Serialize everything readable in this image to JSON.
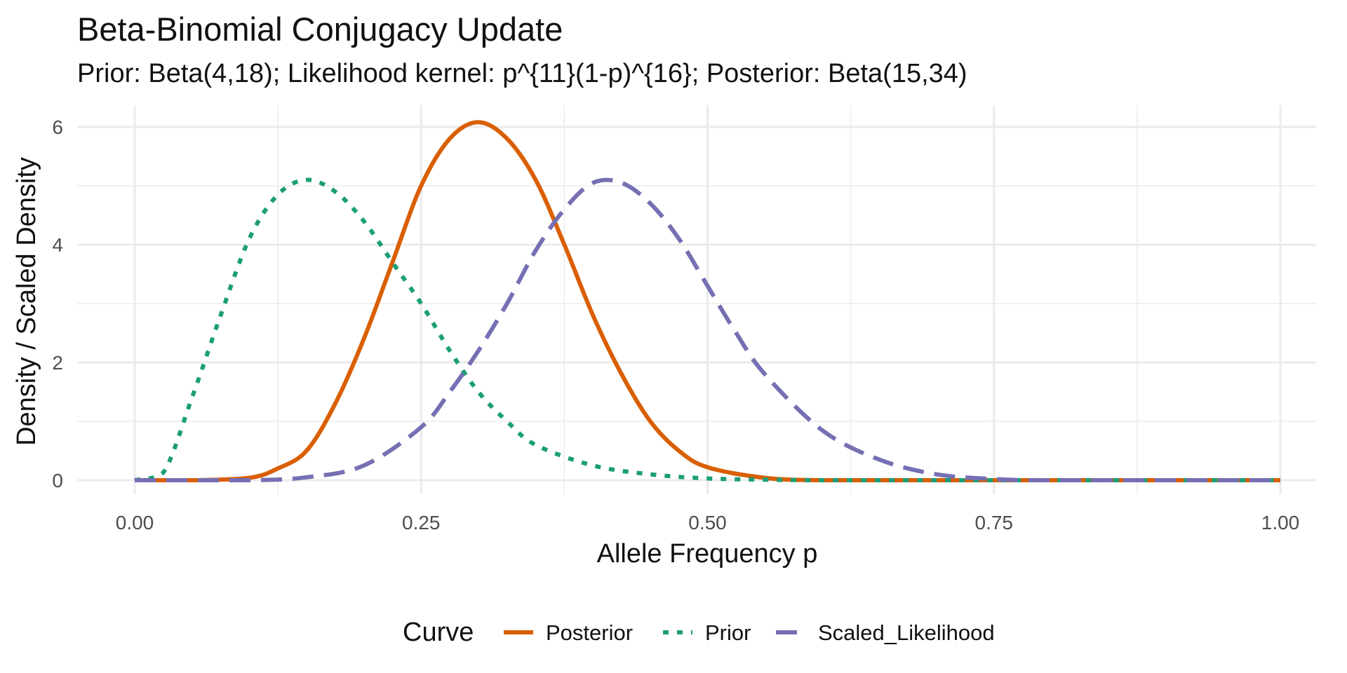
{
  "chart_data": {
    "type": "line",
    "title": "Beta-Binomial Conjugacy Update",
    "subtitle": "Prior: Beta(4,18); Likelihood kernel: p^{11}(1-p)^{16}; Posterior: Beta(15,34)",
    "xlabel": "Allele Frequency p",
    "ylabel": "Density / Scaled Density",
    "xlim": [
      0,
      1
    ],
    "ylim": [
      0,
      6.2
    ],
    "x_ticks": [
      "0.00",
      "0.25",
      "0.50",
      "0.75",
      "1.00"
    ],
    "y_ticks": [
      "0",
      "2",
      "4",
      "6"
    ],
    "grid": true,
    "legend": {
      "title": "Curve",
      "position": "bottom"
    },
    "series": [
      {
        "name": "Posterior",
        "color": "#D95F02",
        "dash": "solid",
        "x": [
          0,
          0.05,
          0.1,
          0.125,
          0.15,
          0.175,
          0.2,
          0.225,
          0.25,
          0.275,
          0.3,
          0.325,
          0.35,
          0.375,
          0.4,
          0.425,
          0.45,
          0.475,
          0.5,
          0.55,
          0.6,
          0.7,
          0.8,
          1.0
        ],
        "y": [
          0,
          0.0,
          0.04,
          0.2,
          0.5,
          1.3,
          2.4,
          3.7,
          5.0,
          5.8,
          6.08,
          5.8,
          5.1,
          4.0,
          2.8,
          1.8,
          1.0,
          0.5,
          0.22,
          0.04,
          0.0,
          0,
          0,
          0
        ]
      },
      {
        "name": "Prior",
        "color": "#1B9E77",
        "dash": "dotted",
        "x": [
          0,
          0.025,
          0.05,
          0.075,
          0.1,
          0.125,
          0.15,
          0.175,
          0.2,
          0.225,
          0.25,
          0.275,
          0.3,
          0.325,
          0.35,
          0.4,
          0.45,
          0.5,
          0.55,
          0.6,
          0.7,
          0.8,
          1.0
        ],
        "y": [
          0,
          0.13,
          1.4,
          2.8,
          4.1,
          4.85,
          5.1,
          4.9,
          4.4,
          3.7,
          3.0,
          2.2,
          1.5,
          1.0,
          0.6,
          0.25,
          0.1,
          0.03,
          0.01,
          0,
          0,
          0,
          0
        ]
      },
      {
        "name": "Scaled_Likelihood",
        "color": "#7570B3",
        "dash": "dashed",
        "x": [
          0,
          0.1,
          0.15,
          0.2,
          0.25,
          0.275,
          0.3,
          0.325,
          0.35,
          0.375,
          0.4,
          0.425,
          0.45,
          0.475,
          0.5,
          0.525,
          0.55,
          0.6,
          0.65,
          0.7,
          0.75,
          0.8,
          1.0
        ],
        "y": [
          0,
          0.0,
          0.05,
          0.25,
          0.9,
          1.5,
          2.2,
          3.0,
          3.9,
          4.6,
          5.05,
          5.05,
          4.7,
          4.1,
          3.3,
          2.5,
          1.8,
          0.85,
          0.35,
          0.1,
          0.02,
          0.0,
          0
        ]
      }
    ]
  }
}
